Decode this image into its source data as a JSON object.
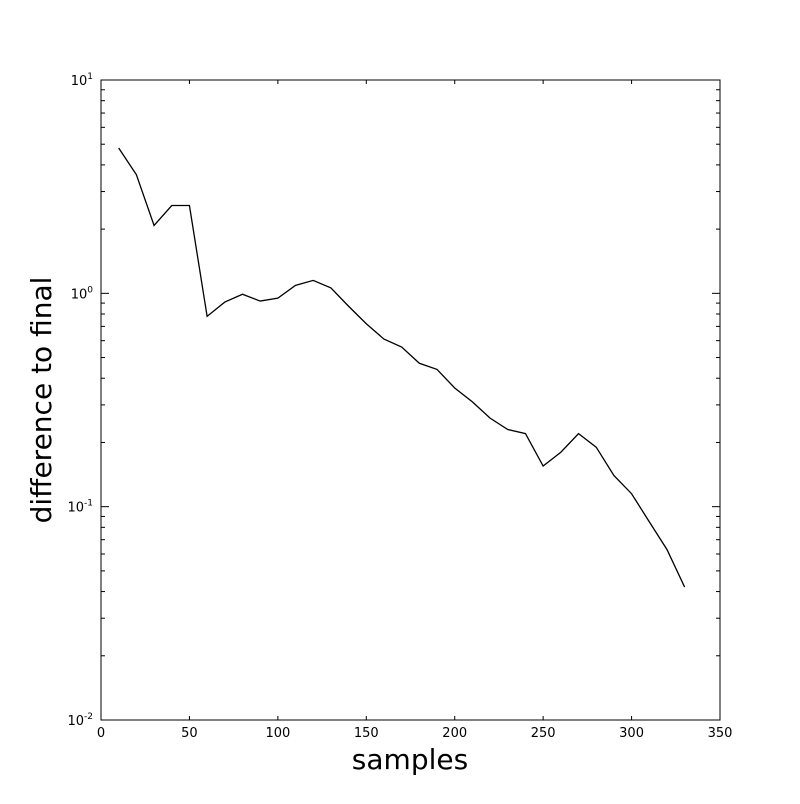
{
  "chart_data": {
    "type": "line",
    "title": "",
    "xlabel": "samples",
    "ylabel": "difference to final",
    "xlim": [
      0,
      350
    ],
    "ylim": [
      0.01,
      10
    ],
    "yscale": "log",
    "grid": false,
    "xticks": [
      {
        "value": 0,
        "label": "0"
      },
      {
        "value": 50,
        "label": "50"
      },
      {
        "value": 100,
        "label": "100"
      },
      {
        "value": 150,
        "label": "150"
      },
      {
        "value": 200,
        "label": "200"
      },
      {
        "value": 250,
        "label": "250"
      },
      {
        "value": 300,
        "label": "300"
      },
      {
        "value": 350,
        "label": "350"
      }
    ],
    "yticks": [
      {
        "value": 0.01,
        "base": "10",
        "exp": "-2"
      },
      {
        "value": 0.1,
        "base": "10",
        "exp": "-1"
      },
      {
        "value": 1,
        "base": "10",
        "exp": "0"
      },
      {
        "value": 10,
        "base": "10",
        "exp": "1"
      }
    ],
    "series": [
      {
        "color": "#000000",
        "x": [
          10,
          20,
          30,
          40,
          50,
          60,
          70,
          80,
          90,
          100,
          110,
          120,
          130,
          140,
          150,
          160,
          170,
          180,
          190,
          200,
          210,
          220,
          230,
          240,
          250,
          260,
          270,
          280,
          290,
          300,
          310,
          320,
          330
        ],
        "y": [
          4.8,
          3.6,
          2.08,
          2.58,
          2.58,
          0.78,
          0.91,
          0.99,
          0.92,
          0.95,
          1.09,
          1.15,
          1.06,
          0.87,
          0.72,
          0.61,
          0.56,
          0.47,
          0.44,
          0.36,
          0.31,
          0.26,
          0.23,
          0.22,
          0.155,
          0.18,
          0.22,
          0.19,
          0.14,
          0.115,
          0.085,
          0.063,
          0.042
        ]
      }
    ]
  }
}
